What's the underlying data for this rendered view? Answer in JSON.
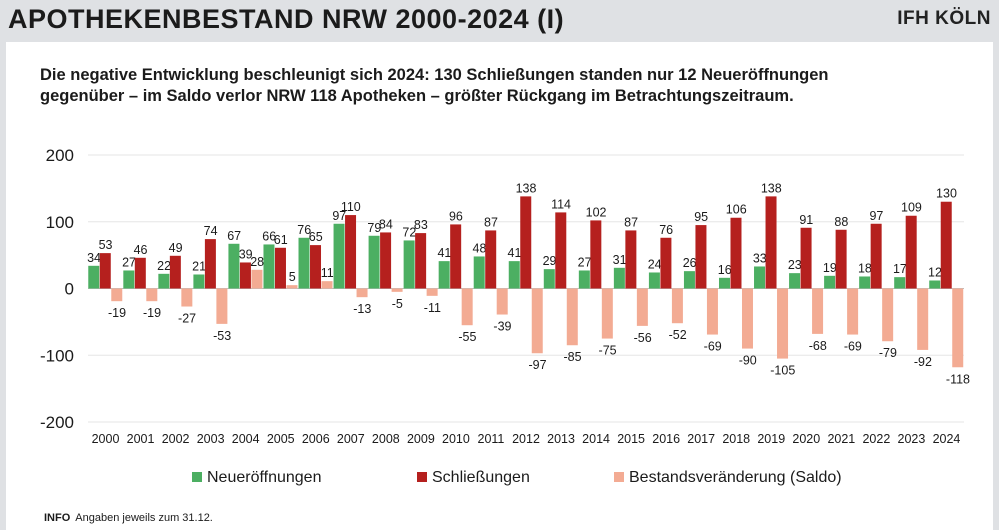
{
  "header": {
    "title": "APOTHEKENBESTAND NRW 2000-2024 (I)",
    "logo_text": "IFH KÖLN"
  },
  "subtitle": {
    "line1": "Die negative Entwicklung beschleunigt sich 2024: 130 Schließungen standen nur 12 Neueröffnungen",
    "line2": "gegenüber – im Saldo verlor NRW 118 Apotheken – größter Rückgang im Betrachtungszeitraum."
  },
  "footnote": {
    "tag": "INFO",
    "text": "Angaben jeweils zum 31.12."
  },
  "chart_data": {
    "type": "bar",
    "categories": [
      "2000",
      "2001",
      "2002",
      "2003",
      "2004",
      "2005",
      "2006",
      "2007",
      "2008",
      "2009",
      "2010",
      "2011",
      "2012",
      "2013",
      "2014",
      "2015",
      "2016",
      "2017",
      "2018",
      "2019",
      "2020",
      "2021",
      "2022",
      "2023",
      "2024"
    ],
    "series": [
      {
        "name": "Neueröffnungen",
        "color": "#4caf62",
        "values": [
          34,
          27,
          22,
          21,
          67,
          66,
          76,
          97,
          79,
          72,
          41,
          48,
          41,
          29,
          27,
          31,
          24,
          26,
          16,
          33,
          23,
          19,
          18,
          17,
          12
        ]
      },
      {
        "name": "Schließungen",
        "color": "#b5201e",
        "values": [
          53,
          46,
          49,
          74,
          39,
          61,
          65,
          110,
          84,
          83,
          96,
          87,
          138,
          114,
          102,
          87,
          76,
          95,
          106,
          138,
          91,
          88,
          97,
          109,
          130
        ]
      },
      {
        "name": "Bestandsveränderung (Saldo)",
        "color": "#f3ab93",
        "values": [
          -19,
          -19,
          -27,
          -53,
          28,
          5,
          11,
          -13,
          -5,
          -11,
          -55,
          -39,
          -97,
          -85,
          -75,
          -56,
          -52,
          -69,
          -90,
          -105,
          -68,
          -69,
          -79,
          -92,
          -118
        ]
      }
    ],
    "ylim": [
      -200,
      200
    ],
    "yticks": [
      200,
      100,
      0,
      -100,
      -200
    ],
    "grid": true,
    "legend": "bottom"
  }
}
